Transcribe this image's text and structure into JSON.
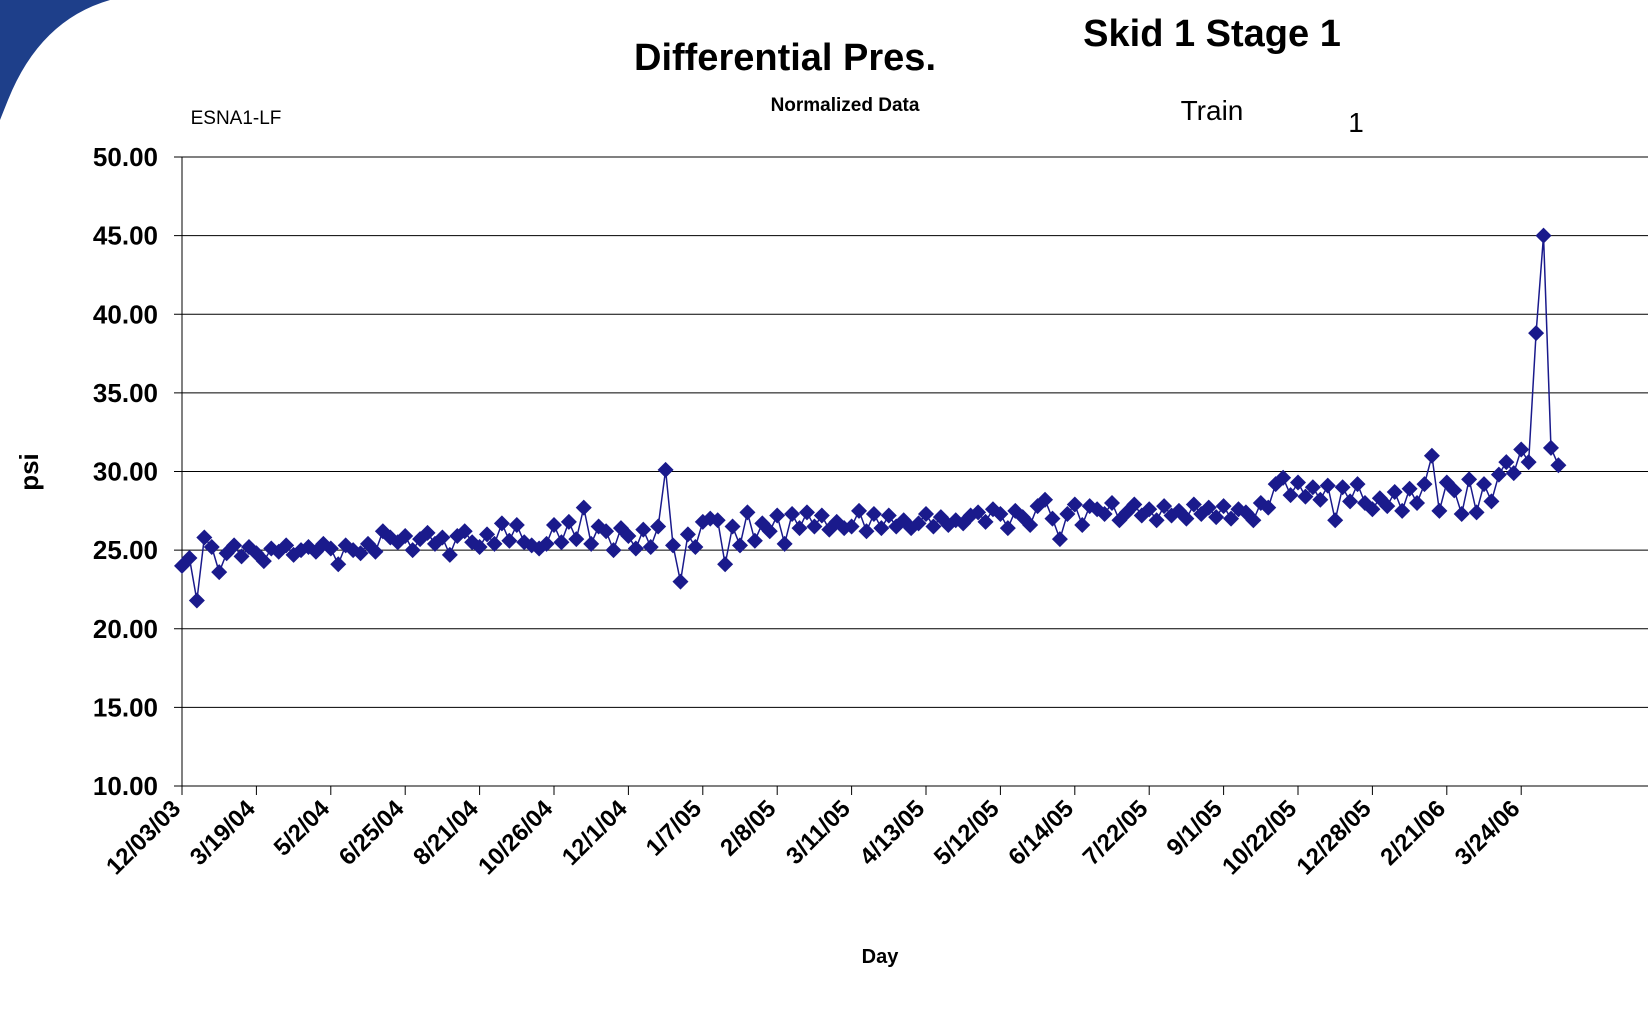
{
  "chart_data": {
    "type": "line",
    "title": "Differential Pres.",
    "subtitle": "Normalized Data",
    "heading": "Skid 1 Stage 1",
    "site": "ESNA1-LF",
    "train_label": "Train",
    "train_number": "1",
    "y_label": "psi",
    "x_label": "Day",
    "categories": [
      "12/03/03",
      null,
      null,
      null,
      null,
      null,
      null,
      null,
      null,
      null,
      "3/19/04",
      null,
      null,
      null,
      null,
      null,
      null,
      null,
      null,
      null,
      "5/2/04",
      null,
      null,
      null,
      null,
      null,
      null,
      null,
      null,
      null,
      "6/25/04",
      null,
      null,
      null,
      null,
      null,
      null,
      null,
      null,
      null,
      "8/21/04",
      null,
      null,
      null,
      null,
      null,
      null,
      null,
      null,
      null,
      "10/26/04",
      null,
      null,
      null,
      null,
      null,
      null,
      null,
      null,
      null,
      "12/1/04",
      null,
      null,
      null,
      null,
      null,
      null,
      null,
      null,
      null,
      "1/7/05",
      null,
      null,
      null,
      null,
      null,
      null,
      null,
      null,
      null,
      "2/8/05",
      null,
      null,
      null,
      null,
      null,
      null,
      null,
      null,
      null,
      "3/11/05",
      null,
      null,
      null,
      null,
      null,
      null,
      null,
      null,
      null,
      "4/13/05",
      null,
      null,
      null,
      null,
      null,
      null,
      null,
      null,
      null,
      "5/12/05",
      null,
      null,
      null,
      null,
      null,
      null,
      null,
      null,
      null,
      "6/14/05",
      null,
      null,
      null,
      null,
      null,
      null,
      null,
      null,
      null,
      "7/22/05",
      null,
      null,
      null,
      null,
      null,
      null,
      null,
      null,
      null,
      "9/1/05",
      null,
      null,
      null,
      null,
      null,
      null,
      null,
      null,
      null,
      "10/22/05",
      null,
      null,
      null,
      null,
      null,
      null,
      null,
      null,
      null,
      "12/28/05",
      null,
      null,
      null,
      null,
      null,
      null,
      null,
      null,
      null,
      "2/21/06",
      null,
      null,
      null,
      null,
      null,
      null,
      null,
      null,
      null,
      "3/24/06",
      null,
      null,
      null,
      null,
      null
    ],
    "series": [
      {
        "name": "Differential Pres.",
        "color": "#1a1a8c",
        "values": [
          24.0,
          24.5,
          21.8,
          25.8,
          25.2,
          23.6,
          24.8,
          25.3,
          24.6,
          25.2,
          24.8,
          24.3,
          25.1,
          24.9,
          25.3,
          24.7,
          25.0,
          25.2,
          24.9,
          25.4,
          25.1,
          24.1,
          25.3,
          25.0,
          24.8,
          25.4,
          24.9,
          26.2,
          25.8,
          25.5,
          25.9,
          25.0,
          25.7,
          26.1,
          25.4,
          25.8,
          24.7,
          25.9,
          26.2,
          25.5,
          25.2,
          26.0,
          25.4,
          26.7,
          25.6,
          26.6,
          25.5,
          25.3,
          25.1,
          25.4,
          26.6,
          25.5,
          26.8,
          25.7,
          27.7,
          25.4,
          26.5,
          26.2,
          25.0,
          26.4,
          25.9,
          25.1,
          26.3,
          25.2,
          26.5,
          30.1,
          25.3,
          23.0,
          26.0,
          25.2,
          26.8,
          27.0,
          26.9,
          24.1,
          26.5,
          25.3,
          27.4,
          25.6,
          26.7,
          26.2,
          27.2,
          25.4,
          27.3,
          26.4,
          27.4,
          26.5,
          27.2,
          26.3,
          26.8,
          26.4,
          26.5,
          27.5,
          26.2,
          27.3,
          26.4,
          27.2,
          26.5,
          26.9,
          26.4,
          26.7,
          27.3,
          26.5,
          27.1,
          26.6,
          26.9,
          26.7,
          27.2,
          27.4,
          26.8,
          27.6,
          27.3,
          26.4,
          27.5,
          27.1,
          26.6,
          27.8,
          28.2,
          27.0,
          25.7,
          27.3,
          27.9,
          26.6,
          27.8,
          27.6,
          27.3,
          28.0,
          26.9,
          27.4,
          27.9,
          27.2,
          27.6,
          26.9,
          27.8,
          27.2,
          27.5,
          27.0,
          27.9,
          27.3,
          27.7,
          27.1,
          27.8,
          27.0,
          27.6,
          27.4,
          26.9,
          28.0,
          27.7,
          29.2,
          29.6,
          28.5,
          29.3,
          28.4,
          29.0,
          28.2,
          29.1,
          26.9,
          29.0,
          28.1,
          29.2,
          28.0,
          27.6,
          28.3,
          27.8,
          28.7,
          27.5,
          28.9,
          28.0,
          29.2,
          31.0,
          27.5,
          29.3,
          28.8,
          27.3,
          29.5,
          27.4,
          29.2,
          28.1,
          29.8,
          30.6,
          29.9,
          31.4,
          30.6,
          38.8,
          45.0,
          31.5,
          30.4
        ]
      }
    ],
    "ylim": [
      10,
      50
    ],
    "yticks": [
      {
        "value": 10,
        "label": "10.00"
      },
      {
        "value": 15,
        "label": "15.00"
      },
      {
        "value": 20,
        "label": "20.00"
      },
      {
        "value": 25,
        "label": "25.00"
      },
      {
        "value": 30,
        "label": "30.00"
      },
      {
        "value": 35,
        "label": "35.00"
      },
      {
        "value": 40,
        "label": "40.00"
      },
      {
        "value": 45,
        "label": "45.00"
      },
      {
        "value": 50,
        "label": "50.00"
      }
    ],
    "grid": true
  }
}
